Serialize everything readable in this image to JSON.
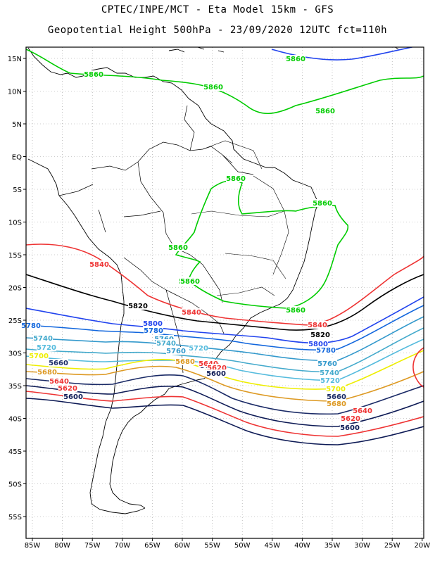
{
  "title_line1": "CPTEC/INPE/MCT -  Eta Model 15km - GFS",
  "title_line2": "Geopotential Height 500hPa - 23/09/2020 12UTC fct=110h",
  "lat_ticks": [
    "15N",
    "10N",
    "5N",
    "EQ",
    "5S",
    "10S",
    "15S",
    "20S",
    "25S",
    "30S",
    "35S",
    "40S",
    "45S",
    "50S",
    "55S"
  ],
  "lon_ticks": [
    "85W",
    "80W",
    "75W",
    "70W",
    "65W",
    "60W",
    "55W",
    "50W",
    "45W",
    "40W",
    "35W",
    "30W",
    "25W",
    "20W"
  ],
  "colors": {
    "5860": "#00cc00",
    "5840": "#ee3333",
    "5820": "#000000",
    "5800": "#2244ee",
    "5780": "#1166dd",
    "5760": "#3399cc",
    "5740": "#44aacc",
    "5720": "#55bbdd",
    "5700": "#eeee00",
    "5680": "#dd9922",
    "5660": "#1a2a66",
    "5640": "#ee3333",
    "5620": "#ee3333",
    "5600": "#0d1a55"
  },
  "contour_labels": [
    {
      "text": "5860",
      "level": "5860"
    },
    {
      "text": "5860",
      "level": "5860"
    },
    {
      "text": "5860",
      "level": "5860"
    },
    {
      "text": "5860",
      "level": "5860"
    },
    {
      "text": "5860",
      "level": "5860"
    },
    {
      "text": "5860",
      "level": "5860"
    },
    {
      "text": "5860",
      "level": "5860"
    },
    {
      "text": "5860",
      "level": "5860"
    },
    {
      "text": "5860",
      "level": "5860"
    },
    {
      "text": "5860",
      "level": "5860"
    },
    {
      "text": "5840",
      "level": "5840"
    },
    {
      "text": "5840",
      "level": "5840"
    },
    {
      "text": "5840",
      "level": "5840"
    },
    {
      "text": "5820",
      "level": "5820"
    },
    {
      "text": "5820",
      "level": "5820"
    },
    {
      "text": "5800",
      "level": "5800"
    },
    {
      "text": "5800",
      "level": "5800"
    },
    {
      "text": "5780",
      "level": "5780"
    },
    {
      "text": "5780",
      "level": "5780"
    },
    {
      "text": "5780",
      "level": "5780"
    },
    {
      "text": "5760",
      "level": "5760"
    },
    {
      "text": "5760",
      "level": "5760"
    },
    {
      "text": "5760",
      "level": "5760"
    },
    {
      "text": "5740",
      "level": "5740"
    },
    {
      "text": "5740",
      "level": "5740"
    },
    {
      "text": "5740",
      "level": "5740"
    },
    {
      "text": "5720",
      "level": "5720"
    },
    {
      "text": "5720",
      "level": "5720"
    },
    {
      "text": "5720",
      "level": "5720"
    },
    {
      "text": "5700",
      "level": "5700"
    },
    {
      "text": "5700",
      "level": "5700"
    },
    {
      "text": "5680",
      "level": "5680"
    },
    {
      "text": "5680",
      "level": "5680"
    },
    {
      "text": "5680",
      "level": "5680"
    },
    {
      "text": "5660",
      "level": "5660"
    },
    {
      "text": "5660",
      "level": "5660"
    },
    {
      "text": "5660",
      "level": "5660"
    },
    {
      "text": "5640",
      "level": "5640"
    },
    {
      "text": "5640",
      "level": "5640"
    },
    {
      "text": "5640",
      "level": "5640"
    },
    {
      "text": "5620",
      "level": "5620"
    },
    {
      "text": "5620",
      "level": "5620"
    },
    {
      "text": "5620",
      "level": "5620"
    },
    {
      "text": "5600",
      "level": "5600"
    },
    {
      "text": "5600",
      "level": "5600"
    },
    {
      "text": "5600",
      "level": "5600"
    }
  ]
}
